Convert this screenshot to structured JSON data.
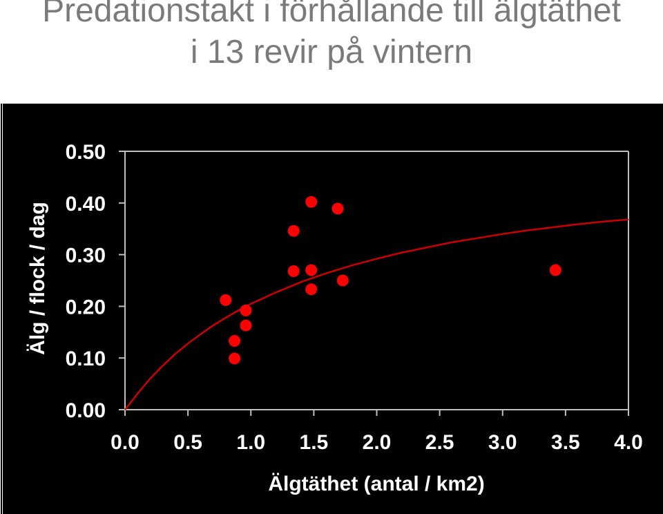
{
  "title_line1": "Predationstakt i förhållande till älgtäthet",
  "title_line2": "i 13 revir på vintern",
  "chart_data": {
    "type": "scatter",
    "xlabel": "Älgtäthet (antal / km2)",
    "ylabel": "Älg / flock / dag",
    "xlim": [
      0,
      4
    ],
    "ylim": [
      0,
      0.5
    ],
    "x_ticks": [
      "0.0",
      "0.5",
      "1.0",
      "1.5",
      "2.0",
      "2.5",
      "3.0",
      "3.5",
      "4.0"
    ],
    "y_ticks": [
      "0.00",
      "0.10",
      "0.20",
      "0.30",
      "0.40",
      "0.50"
    ],
    "grid": false,
    "colors": {
      "background": "#000000",
      "points": "#ff0000",
      "curve": "#cc0000",
      "text": "#ffffff",
      "axes": "#c0c0c0",
      "title": "#7a7a7a"
    },
    "series": [
      {
        "type": "scatter",
        "points": [
          [
            0.8,
            0.212
          ],
          [
            0.87,
            0.133
          ],
          [
            0.87,
            0.099
          ],
          [
            0.96,
            0.192
          ],
          [
            0.96,
            0.163
          ],
          [
            1.34,
            0.346
          ],
          [
            1.34,
            0.268
          ],
          [
            1.48,
            0.402
          ],
          [
            1.48,
            0.27
          ],
          [
            1.48,
            0.233
          ],
          [
            1.69,
            0.389
          ],
          [
            1.73,
            0.25
          ],
          [
            3.42,
            0.27
          ]
        ]
      },
      {
        "type": "line",
        "curve": "saturating",
        "points": [
          [
            0.0,
            0.0
          ],
          [
            0.1,
            0.031
          ],
          [
            0.2,
            0.06
          ],
          [
            0.3,
            0.085
          ],
          [
            0.4,
            0.108
          ],
          [
            0.5,
            0.128
          ],
          [
            0.6,
            0.146
          ],
          [
            0.7,
            0.163
          ],
          [
            0.8,
            0.178
          ],
          [
            0.9,
            0.192
          ],
          [
            1.0,
            0.205
          ],
          [
            1.2,
            0.227
          ],
          [
            1.4,
            0.247
          ],
          [
            1.6,
            0.264
          ],
          [
            1.8,
            0.279
          ],
          [
            2.0,
            0.292
          ],
          [
            2.2,
            0.304
          ],
          [
            2.4,
            0.314
          ],
          [
            2.6,
            0.324
          ],
          [
            2.8,
            0.332
          ],
          [
            3.0,
            0.34
          ],
          [
            3.2,
            0.347
          ],
          [
            3.4,
            0.353
          ],
          [
            3.6,
            0.359
          ],
          [
            3.8,
            0.364
          ],
          [
            4.0,
            0.368
          ]
        ]
      }
    ]
  }
}
